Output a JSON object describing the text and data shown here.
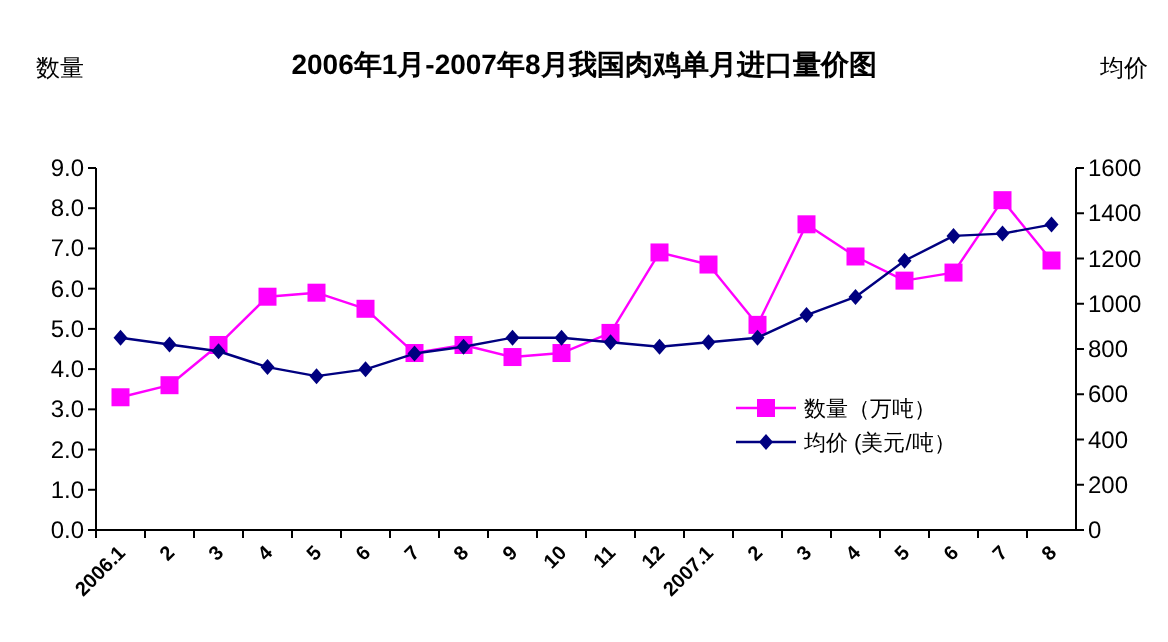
{
  "chart_data": {
    "type": "line",
    "title": "2006年1月-2007年8月我国肉鸡单月进口量价图",
    "ylabel": "数量",
    "y2label": "均价",
    "categories": [
      "2006.1",
      "2",
      "3",
      "4",
      "5",
      "6",
      "7",
      "8",
      "9",
      "10",
      "11",
      "12",
      "2007.1",
      "2",
      "3",
      "4",
      "5",
      "6",
      "7",
      "8"
    ],
    "series": [
      {
        "name": "数量（万吨）",
        "color": "#ff00ff",
        "marker": "square",
        "values": [
          3.3,
          3.6,
          4.6,
          5.8,
          5.9,
          5.5,
          4.4,
          4.6,
          4.3,
          4.4,
          4.9,
          6.9,
          6.6,
          5.1,
          7.6,
          6.8,
          6.2,
          6.4,
          8.2,
          6.7
        ]
      },
      {
        "name": "均价 (美元/吨）",
        "color": "#000080",
        "marker": "diamond",
        "axis": "y2",
        "values": [
          850,
          820,
          790,
          720,
          680,
          710,
          780,
          810,
          850,
          850,
          830,
          810,
          830,
          850,
          950,
          1030,
          1190,
          1300,
          1310,
          1350
        ]
      }
    ],
    "ylim": [
      0,
      9
    ],
    "yticks": [
      {
        "value": 0,
        "label": "0.0"
      },
      {
        "value": 1,
        "label": "1.0"
      },
      {
        "value": 2,
        "label": "2.0"
      },
      {
        "value": 3,
        "label": "3.0"
      },
      {
        "value": 4,
        "label": "4.0"
      },
      {
        "value": 5,
        "label": "5.0"
      },
      {
        "value": 6,
        "label": "6.0"
      },
      {
        "value": 7,
        "label": "7.0"
      },
      {
        "value": 8,
        "label": "8.0"
      },
      {
        "value": 9,
        "label": "9.0"
      }
    ],
    "y2lim": [
      0,
      1600
    ],
    "y2ticks": [
      0,
      200,
      400,
      600,
      800,
      1000,
      1200,
      1400,
      1600
    ],
    "legend": "right",
    "grid": false
  }
}
